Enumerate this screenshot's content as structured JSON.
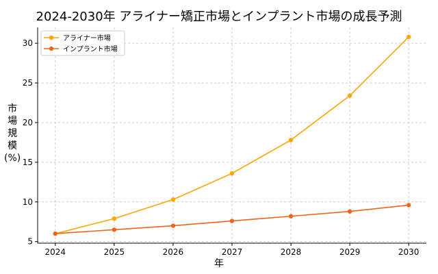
{
  "chart_data": {
    "type": "line",
    "title": "2024-2030年 アライナー矯正市場とインプラント市場の成長予測",
    "xlabel": "年",
    "ylabel": "市場規模(%)",
    "x": [
      2024,
      2025,
      2026,
      2027,
      2028,
      2029,
      2030
    ],
    "xlim": [
      2023.7,
      2030.3
    ],
    "ylim": [
      4.8,
      32.0
    ],
    "yticks": [
      5,
      10,
      15,
      20,
      25,
      30
    ],
    "grid": true,
    "legend": "top-left",
    "series": [
      {
        "name": "アライナー市場",
        "color": "#FFA500",
        "values": [
          6.0,
          7.9,
          10.3,
          13.6,
          17.8,
          23.4,
          30.8
        ]
      },
      {
        "name": "インプラント市場",
        "color": "#F26419",
        "values": [
          6.0,
          6.5,
          7.0,
          7.6,
          8.2,
          8.8,
          9.6
        ]
      }
    ]
  }
}
